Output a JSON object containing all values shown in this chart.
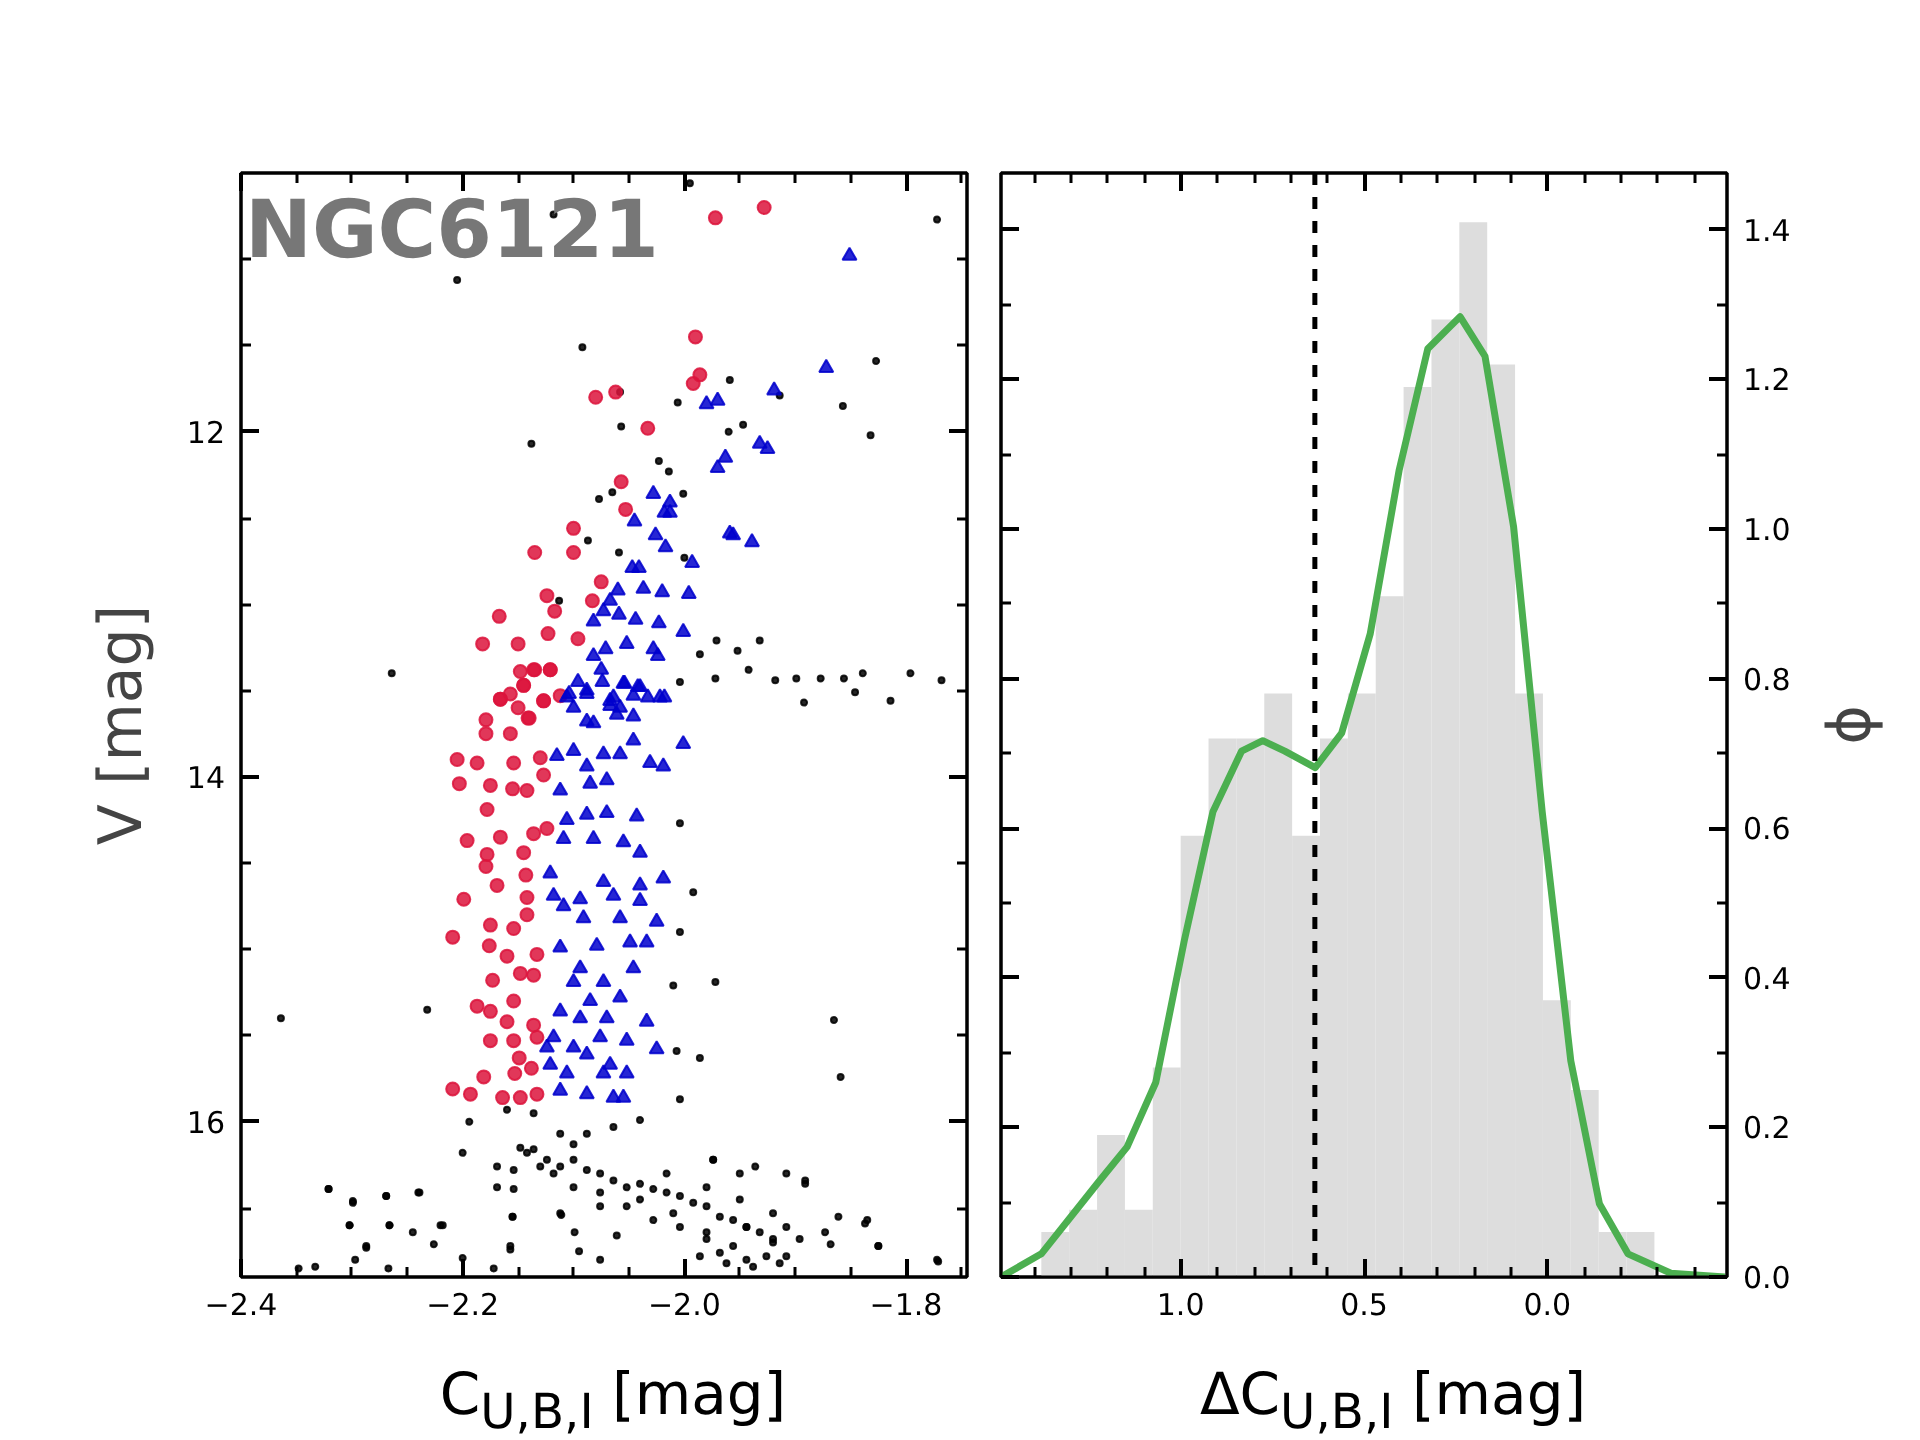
{
  "chart_data": [
    {
      "type": "scatter",
      "xlabel": "C$_{U,B,I}$ [mag]",
      "ylabel": "V [mag]",
      "xlim": [
        -2.4,
        -1.745
      ],
      "ylim": [
        16.9,
        10.5
      ],
      "xticks": [
        {
          "value": -2.4,
          "label": "−2.4"
        },
        {
          "value": -2.2,
          "label": "−2.2"
        },
        {
          "value": -2.0,
          "label": "−2.0"
        },
        {
          "value": -1.8,
          "label": "−1.8"
        },
        {
          "value": -2.35,
          "label": null
        },
        {
          "value": -2.3,
          "label": null
        },
        {
          "value": -2.25,
          "label": null
        },
        {
          "value": -2.15,
          "label": null
        },
        {
          "value": -2.1,
          "label": null
        },
        {
          "value": -2.05,
          "label": null
        },
        {
          "value": -1.95,
          "label": null
        },
        {
          "value": -1.9,
          "label": null
        },
        {
          "value": -1.85,
          "label": null
        },
        {
          "value": -1.75,
          "label": null
        }
      ],
      "yticks": [
        12,
        14,
        16,
        {
          "value": 11,
          "label": null
        },
        {
          "value": 11.5,
          "label": null
        },
        {
          "value": 12.5,
          "label": null
        },
        {
          "value": 13,
          "label": null
        },
        {
          "value": 13.5,
          "label": null
        },
        {
          "value": 14.5,
          "label": null
        },
        {
          "value": 15,
          "label": null
        },
        {
          "value": 15.5,
          "label": null
        },
        {
          "value": 16.5,
          "label": null
        }
      ],
      "annotations": [
        "NGC6121"
      ],
      "series": [
        {
          "color": "#000000",
          "marker": "circle",
          "x": [
            -1.995,
            -2.118,
            -1.772,
            -2.205,
            -2.092,
            -1.827,
            -1.959,
            -1.857,
            -2.058,
            -2.006,
            -1.914,
            -2.138,
            -2.057,
            -1.96,
            -1.947,
            -1.832,
            -2.023,
            -2.014,
            -2.065,
            -2.001,
            -2.077,
            -2.087,
            -2.059,
            -2.0,
            -2.113,
            -1.986,
            -1.971,
            -1.952,
            -1.932,
            -2.264,
            -2.004,
            -1.972,
            -1.942,
            -1.918,
            -1.899,
            -1.877,
            -1.856,
            -1.839,
            -1.814,
            -1.796,
            -1.768,
            -1.892,
            -1.846,
            -2.364,
            -2.232,
            -1.865,
            -2.007,
            -1.986,
            -1.859,
            -2.004,
            -2.004,
            -1.992,
            -2.004,
            -2.01,
            -1.972,
            -2.194,
            -2.2,
            -2.321,
            -2.299,
            -2.269,
            -2.24,
            -2.302,
            -2.266,
            -2.22,
            -2.287,
            -2.226,
            -2.169,
            -2.154,
            -2.169,
            -2.154,
            -2.155,
            -2.157,
            -2.112,
            -2.076,
            -2.04,
            -2.01,
            -1.98,
            -1.944,
            -1.92,
            -1.896,
            -1.873,
            -1.837,
            -1.825,
            -1.771,
            -1.891,
            -1.908,
            -1.974,
            -1.936,
            -2.148,
            -2.136,
            -2.124,
            -2.112,
            -2.1,
            -2.088,
            -2.076,
            -2.064,
            -2.052,
            -2.04,
            -2.028,
            -2.016,
            -2.004,
            -1.992,
            -1.98,
            -1.968,
            -1.956,
            -1.944,
            -1.932,
            -1.92,
            -1.968,
            -1.944,
            -1.926,
            -1.98,
            -1.956,
            -2.004,
            -2.028,
            -2.052,
            -2.076,
            -2.1,
            -2.118,
            -2.13,
            -2.142,
            -2.088,
            -2.064,
            -2.04,
            -2.112,
            -2.136,
            -2.16,
            -2.1,
            -2.016,
            -1.98,
            -1.95,
            -1.92,
            -1.908,
            -1.986,
            -1.962,
            -1.938,
            -1.914,
            -2.321,
            -2.299,
            -2.269,
            -2.239,
            -2.302,
            -2.266,
            -2.245,
            -2.218,
            -2.287,
            -2.297,
            -2.333,
            -2.348,
            -2.267,
            -2.2,
            -2.172,
            -2.157,
            -2.155,
            -2.111,
            -2.099,
            -2.095,
            -2.076,
            -2.061,
            -1.974,
            -1.95,
            -1.891,
            -1.861,
            -1.835,
            -1.825,
            -1.772,
            -1.868,
            -1.908
          ],
          "values": [
            10.56,
            10.74,
            10.77,
            11.12,
            11.51,
            11.59,
            11.7,
            11.85,
            11.77,
            11.83,
            11.79,
            12.07,
            11.97,
            12.0,
            11.96,
            12.02,
            12.17,
            12.23,
            12.35,
            12.36,
            12.39,
            12.63,
            12.7,
            12.73,
            12.98,
            13.29,
            13.21,
            13.27,
            13.21,
            13.4,
            13.45,
            13.43,
            13.38,
            13.44,
            13.43,
            13.43,
            13.43,
            13.4,
            13.56,
            13.4,
            13.44,
            13.57,
            13.51,
            15.4,
            15.35,
            15.41,
            15.59,
            15.63,
            15.74,
            15.87,
            14.27,
            14.67,
            14.9,
            15.21,
            15.19,
            16.0,
            16.18,
            16.39,
            16.47,
            16.43,
            16.41,
            16.6,
            16.6,
            16.6,
            16.72,
            16.71,
            16.26,
            16.28,
            16.38,
            16.39,
            16.55,
            16.72,
            16.53,
            16.49,
            16.45,
            16.53,
            16.64,
            16.61,
            16.68,
            16.68,
            16.64,
            16.59,
            16.72,
            16.81,
            16.36,
            16.3,
            16.22,
            16.26,
            16.15,
            16.16,
            16.22,
            16.26,
            16.22,
            16.28,
            16.3,
            16.34,
            16.38,
            16.36,
            16.39,
            16.41,
            16.43,
            16.47,
            16.49,
            16.55,
            16.57,
            16.61,
            16.64,
            16.7,
            16.76,
            16.8,
            16.78,
            16.68,
            16.72,
            16.61,
            16.57,
            16.49,
            16.41,
            16.38,
            16.3,
            16.26,
            16.18,
            16.07,
            16.03,
            15.99,
            16.07,
            15.95,
            15.93,
            16.13,
            16.3,
            16.38,
            16.45,
            16.53,
            16.61,
            16.78,
            16.82,
            16.84,
            16.82,
            16.39,
            16.46,
            16.43,
            16.41,
            16.6,
            16.6,
            16.64,
            16.6,
            16.73,
            16.8,
            16.84,
            16.85,
            16.85,
            16.79,
            16.85,
            16.74,
            16.55,
            16.54,
            16.64,
            16.75,
            16.8,
            16.66,
            16.22,
            16.3,
            16.34,
            16.55,
            16.57,
            16.72,
            16.8,
            16.71,
            16.78
          ]
        },
        {
          "color": "#dc143c",
          "marker": "circle",
          "x": [
            -1.972,
            -1.928,
            -1.99,
            -1.986,
            -1.992,
            -2.08,
            -2.062,
            -2.033,
            -2.057,
            -2.053,
            -2.1,
            -2.135,
            -2.1,
            -2.075,
            -2.124,
            -2.083,
            -2.117,
            -2.167,
            -2.123,
            -2.182,
            -2.15,
            -2.096,
            -2.135,
            -2.121,
            -2.145,
            -2.112,
            -2.166,
            -2.127,
            -2.15,
            -2.14,
            -2.179,
            -2.148,
            -2.136,
            -2.121,
            -2.145,
            -2.166,
            -2.157,
            -2.127,
            -2.179,
            -2.141,
            -2.157,
            -2.205,
            -2.187,
            -2.154,
            -2.13,
            -2.203,
            -2.175,
            -2.155,
            -2.142,
            -2.127,
            -2.178,
            -2.196,
            -2.166,
            -2.136,
            -2.124,
            -2.178,
            -2.145,
            -2.179,
            -2.143,
            -2.169,
            -2.199,
            -2.142,
            -2.142,
            -2.209,
            -2.175,
            -2.154,
            -2.176,
            -2.16,
            -2.133,
            -2.148,
            -2.173,
            -2.136,
            -2.187,
            -2.154,
            -2.175,
            -2.16,
            -2.136,
            -2.175,
            -2.154,
            -2.133,
            -2.149,
            -2.138,
            -2.181,
            -2.153,
            -2.209,
            -2.193,
            -2.164,
            -2.148,
            -2.133
          ],
          "values": [
            10.76,
            10.7,
            11.45,
            11.67,
            11.72,
            11.8,
            11.77,
            11.98,
            12.29,
            12.45,
            12.56,
            12.7,
            12.7,
            12.87,
            12.95,
            12.98,
            13.04,
            13.07,
            13.17,
            13.23,
            13.23,
            13.2,
            13.38,
            13.38,
            13.47,
            13.53,
            13.55,
            13.56,
            13.6,
            13.66,
            13.67,
            13.39,
            13.38,
            13.38,
            13.47,
            13.55,
            13.52,
            13.56,
            13.75,
            13.66,
            13.75,
            13.9,
            13.92,
            13.92,
            13.89,
            14.04,
            14.05,
            14.07,
            14.08,
            13.99,
            14.19,
            14.37,
            14.35,
            14.33,
            14.3,
            14.45,
            14.44,
            14.52,
            14.57,
            14.63,
            14.71,
            14.7,
            14.8,
            14.93,
            14.86,
            14.88,
            14.98,
            15.04,
            15.03,
            15.14,
            15.18,
            15.15,
            15.33,
            15.3,
            15.36,
            15.42,
            15.44,
            15.53,
            15.53,
            15.51,
            15.63,
            15.69,
            15.74,
            15.72,
            15.81,
            15.84,
            15.86,
            15.86,
            15.84
          ]
        },
        {
          "color": "#0000cd",
          "marker": "triangle",
          "x": [
            -1.851,
            -1.872,
            -1.919,
            -1.98,
            -1.97,
            -1.932,
            -1.925,
            -1.963,
            -1.97,
            -2.028,
            -2.013,
            -2.018,
            -2.013,
            -2.045,
            -2.026,
            -2.017,
            -1.959,
            -1.956,
            -1.939,
            -1.993,
            -2.047,
            -2.041,
            -2.037,
            -2.06,
            -2.02,
            -1.996,
            -2.073,
            -2.067,
            -2.059,
            -2.044,
            -2.023,
            -2.001,
            -2.082,
            -2.052,
            -2.071,
            -2.028,
            -2.024,
            -2.082,
            -2.075,
            -2.074,
            -2.096,
            -2.054,
            -2.042,
            -2.106,
            -2.088,
            -2.064,
            -2.046,
            -2.033,
            -2.018,
            -2.1,
            -2.067,
            -2.058,
            -2.088,
            -2.046,
            -2.104,
            -2.088,
            -2.067,
            -2.055,
            -2.04,
            -2.022,
            -2.082,
            -2.061,
            -2.115,
            -2.1,
            -2.088,
            -2.073,
            -2.058,
            -2.046,
            -2.031,
            -2.019,
            -2.001,
            -2.112,
            -2.085,
            -2.07,
            -2.106,
            -2.088,
            -2.07,
            -2.043,
            -2.109,
            -2.082,
            -2.055,
            -2.04,
            -2.121,
            -2.073,
            -2.04,
            -2.019,
            -2.118,
            -2.094,
            -2.064,
            -2.04,
            -2.109,
            -2.091,
            -2.058,
            -2.025,
            -2.112,
            -2.079,
            -2.049,
            -2.034,
            -2.094,
            -2.073,
            -2.046,
            -2.1,
            -2.085,
            -2.058,
            -2.112,
            -2.094,
            -2.07,
            -2.034,
            -2.118,
            -2.1,
            -2.076,
            -2.052,
            -2.025,
            -2.121,
            -2.088,
            -2.067,
            -2.106,
            -2.073,
            -2.052,
            -2.112,
            -2.088,
            -2.064,
            -2.055,
            -2.124
          ],
          "values": [
            10.98,
            11.63,
            11.76,
            11.84,
            11.82,
            12.07,
            12.1,
            12.15,
            12.21,
            12.36,
            12.41,
            12.47,
            12.47,
            12.52,
            12.6,
            12.67,
            12.59,
            12.6,
            12.64,
            12.76,
            12.79,
            12.79,
            12.91,
            12.92,
            12.93,
            12.94,
            13.04,
            12.98,
            13.06,
            13.09,
            13.11,
            13.16,
            13.1,
            13.23,
            13.26,
            13.26,
            13.3,
            13.3,
            13.38,
            13.45,
            13.45,
            13.46,
            13.48,
            13.54,
            13.52,
            13.54,
            13.53,
            13.54,
            13.54,
            13.6,
            13.59,
            13.6,
            13.68,
            13.65,
            13.52,
            13.5,
            13.56,
            13.46,
            13.48,
            13.54,
            13.69,
            13.64,
            13.88,
            13.85,
            13.94,
            13.87,
            13.87,
            13.79,
            13.92,
            13.94,
            13.81,
            14.08,
            14.04,
            14.02,
            14.25,
            14.22,
            14.21,
            14.23,
            14.36,
            14.36,
            14.38,
            14.44,
            14.56,
            14.61,
            14.63,
            14.59,
            14.69,
            14.71,
            14.69,
            14.72,
            14.75,
            14.82,
            14.82,
            14.84,
            14.99,
            14.98,
            14.96,
            14.96,
            15.11,
            15.19,
            15.11,
            15.19,
            15.3,
            15.28,
            15.36,
            15.4,
            15.4,
            15.42,
            15.51,
            15.57,
            15.51,
            15.53,
            15.58,
            15.67,
            15.61,
            15.67,
            15.72,
            15.72,
            15.72,
            15.82,
            15.84,
            15.86,
            15.86,
            15.57
          ]
        }
      ]
    },
    {
      "type": "histogram",
      "xlabel": "ΔC$_{U,B,I}$ [mag]",
      "ylabel": "ϕ",
      "xlim": [
        1.49,
        -0.49
      ],
      "ylim": [
        0,
        1.476
      ],
      "xticks": [
        {
          "value": 1.0,
          "label": "1.0"
        },
        {
          "value": 0.5,
          "label": "0.5"
        },
        {
          "value": 0.0,
          "label": "0.0"
        },
        {
          "value": 1.4,
          "label": null
        },
        {
          "value": 1.3,
          "label": null
        },
        {
          "value": 1.2,
          "label": null
        },
        {
          "value": 1.1,
          "label": null
        },
        {
          "value": 0.9,
          "label": null
        },
        {
          "value": 0.8,
          "label": null
        },
        {
          "value": 0.7,
          "label": null
        },
        {
          "value": 0.6,
          "label": null
        },
        {
          "value": 0.4,
          "label": null
        },
        {
          "value": 0.3,
          "label": null
        },
        {
          "value": 0.2,
          "label": null
        },
        {
          "value": 0.1,
          "label": null
        },
        {
          "value": -0.1,
          "label": null
        },
        {
          "value": -0.2,
          "label": null
        },
        {
          "value": -0.3,
          "label": null
        },
        {
          "value": -0.4,
          "label": null
        }
      ],
      "yticks": [
        {
          "value": 0.0,
          "label": "0.0"
        },
        {
          "value": 0.2,
          "label": "0.2"
        },
        {
          "value": 0.4,
          "label": "0.4"
        },
        {
          "value": 0.6,
          "label": "0.6"
        },
        {
          "value": 0.8,
          "label": "0.8"
        },
        {
          "value": 1.0,
          "label": "1.0"
        },
        {
          "value": 1.2,
          "label": "1.2"
        },
        {
          "value": 1.4,
          "label": "1.4"
        },
        {
          "value": 0.1,
          "label": null
        },
        {
          "value": 0.3,
          "label": null
        },
        {
          "value": 0.5,
          "label": null
        },
        {
          "value": 0.7,
          "label": null
        },
        {
          "value": 0.9,
          "label": null
        },
        {
          "value": 1.1,
          "label": null
        },
        {
          "value": 1.3,
          "label": null
        }
      ],
      "bins": [
        -0.292,
        -0.216,
        -0.14,
        -0.064,
        0.012,
        0.088,
        0.164,
        0.24,
        0.316,
        0.392,
        0.468,
        0.544,
        0.62,
        0.696,
        0.772,
        0.848,
        0.924,
        1.0,
        1.076,
        1.152,
        1.228,
        1.304,
        1.38
      ],
      "values": [
        0.06,
        0.06,
        0.25,
        0.37,
        0.78,
        1.22,
        1.41,
        1.28,
        1.19,
        0.91,
        0.78,
        0.72,
        0.59,
        0.78,
        0.72,
        0.72,
        0.59,
        0.28,
        0.09,
        0.19,
        0.09,
        0.06
      ],
      "color": "#dddddd",
      "ref_lines": [
        {
          "axis": "x",
          "value": 0.634,
          "color": "#000000",
          "line_style": "dashed"
        }
      ],
      "series": [
        {
          "type": "line",
          "color": "#4caf50",
          "x": [
            1.49,
            1.38,
            1.224,
            1.146,
            1.068,
            0.99,
            0.912,
            0.834,
            0.776,
            0.716,
            0.633,
            0.561,
            0.483,
            0.404,
            0.326,
            0.238,
            0.17,
            0.092,
            0.014,
            -0.064,
            -0.142,
            -0.22,
            -0.337,
            -0.484
          ],
          "values": [
            0.0,
            0.031,
            0.127,
            0.174,
            0.26,
            0.45,
            0.622,
            0.703,
            0.717,
            0.703,
            0.681,
            0.727,
            0.86,
            1.079,
            1.241,
            1.284,
            1.231,
            1.003,
            0.622,
            0.289,
            0.098,
            0.031,
            0.005,
            0.0
          ]
        }
      ]
    }
  ]
}
